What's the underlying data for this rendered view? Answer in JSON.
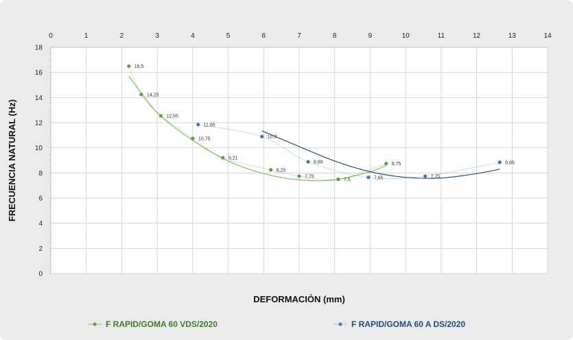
{
  "chart_data": {
    "type": "scatter",
    "xlabel": "DEFORMACIÓN (mm)",
    "ylabel": "FRECUENCIA NATURAL (Hz)",
    "xlim": [
      0,
      14
    ],
    "ylim": [
      0,
      18
    ],
    "x_ticks": [
      "0",
      "1",
      "2",
      "3",
      "4",
      "5",
      "6",
      "7",
      "8",
      "9",
      "10",
      "11",
      "12",
      "13",
      "14"
    ],
    "y_ticks": [
      "0",
      "2",
      "4",
      "6",
      "8",
      "10",
      "12",
      "14",
      "16",
      "18"
    ],
    "x_axis_position": "top",
    "grid": true,
    "legend_position": "bottom",
    "series": [
      {
        "name": "F RAPID/GOMA 60 VDS/2020",
        "color": "#5aa13b",
        "trend_color": "#7fc45a",
        "points": [
          {
            "x": 2.2,
            "y": 16.5,
            "label": "16,5"
          },
          {
            "x": 2.55,
            "y": 14.25,
            "label": "14,25"
          },
          {
            "x": 3.1,
            "y": 12.55,
            "label": "12,55"
          },
          {
            "x": 4.0,
            "y": 10.75,
            "label": "10,75"
          },
          {
            "x": 4.85,
            "y": 9.21,
            "label": "9,21"
          },
          {
            "x": 6.2,
            "y": 8.25,
            "label": "8,25"
          },
          {
            "x": 7.0,
            "y": 7.75,
            "label": "7,75"
          },
          {
            "x": 8.1,
            "y": 7.5,
            "label": "7,5"
          },
          {
            "x": 9.45,
            "y": 8.75,
            "label": "8,75"
          }
        ],
        "trend": [
          [
            2.2,
            15.7
          ],
          [
            3.0,
            12.8
          ],
          [
            4.0,
            10.6
          ],
          [
            5.0,
            8.95
          ],
          [
            6.0,
            7.95
          ],
          [
            7.0,
            7.45
          ],
          [
            8.0,
            7.45
          ],
          [
            9.0,
            8.1
          ],
          [
            9.45,
            8.6
          ]
        ]
      },
      {
        "name": "F RAPID/GOMA 60 A DS/2020",
        "color": "#3a7ac4",
        "trend_color": "#2a4a82",
        "points": [
          {
            "x": 4.15,
            "y": 11.85,
            "label": "11,85"
          },
          {
            "x": 5.95,
            "y": 10.9,
            "label": "10,9"
          },
          {
            "x": 7.25,
            "y": 8.89,
            "label": "8,89"
          },
          {
            "x": 8.95,
            "y": 7.65,
            "label": "7,65"
          },
          {
            "x": 10.55,
            "y": 7.75,
            "label": "7,75"
          },
          {
            "x": 12.65,
            "y": 8.85,
            "label": "8,85"
          }
        ],
        "trend": [
          [
            5.95,
            11.35
          ],
          [
            7.0,
            10.1
          ],
          [
            8.0,
            8.95
          ],
          [
            9.0,
            8.1
          ],
          [
            10.0,
            7.65
          ],
          [
            11.0,
            7.6
          ],
          [
            12.0,
            7.95
          ],
          [
            12.65,
            8.3
          ]
        ]
      }
    ]
  }
}
